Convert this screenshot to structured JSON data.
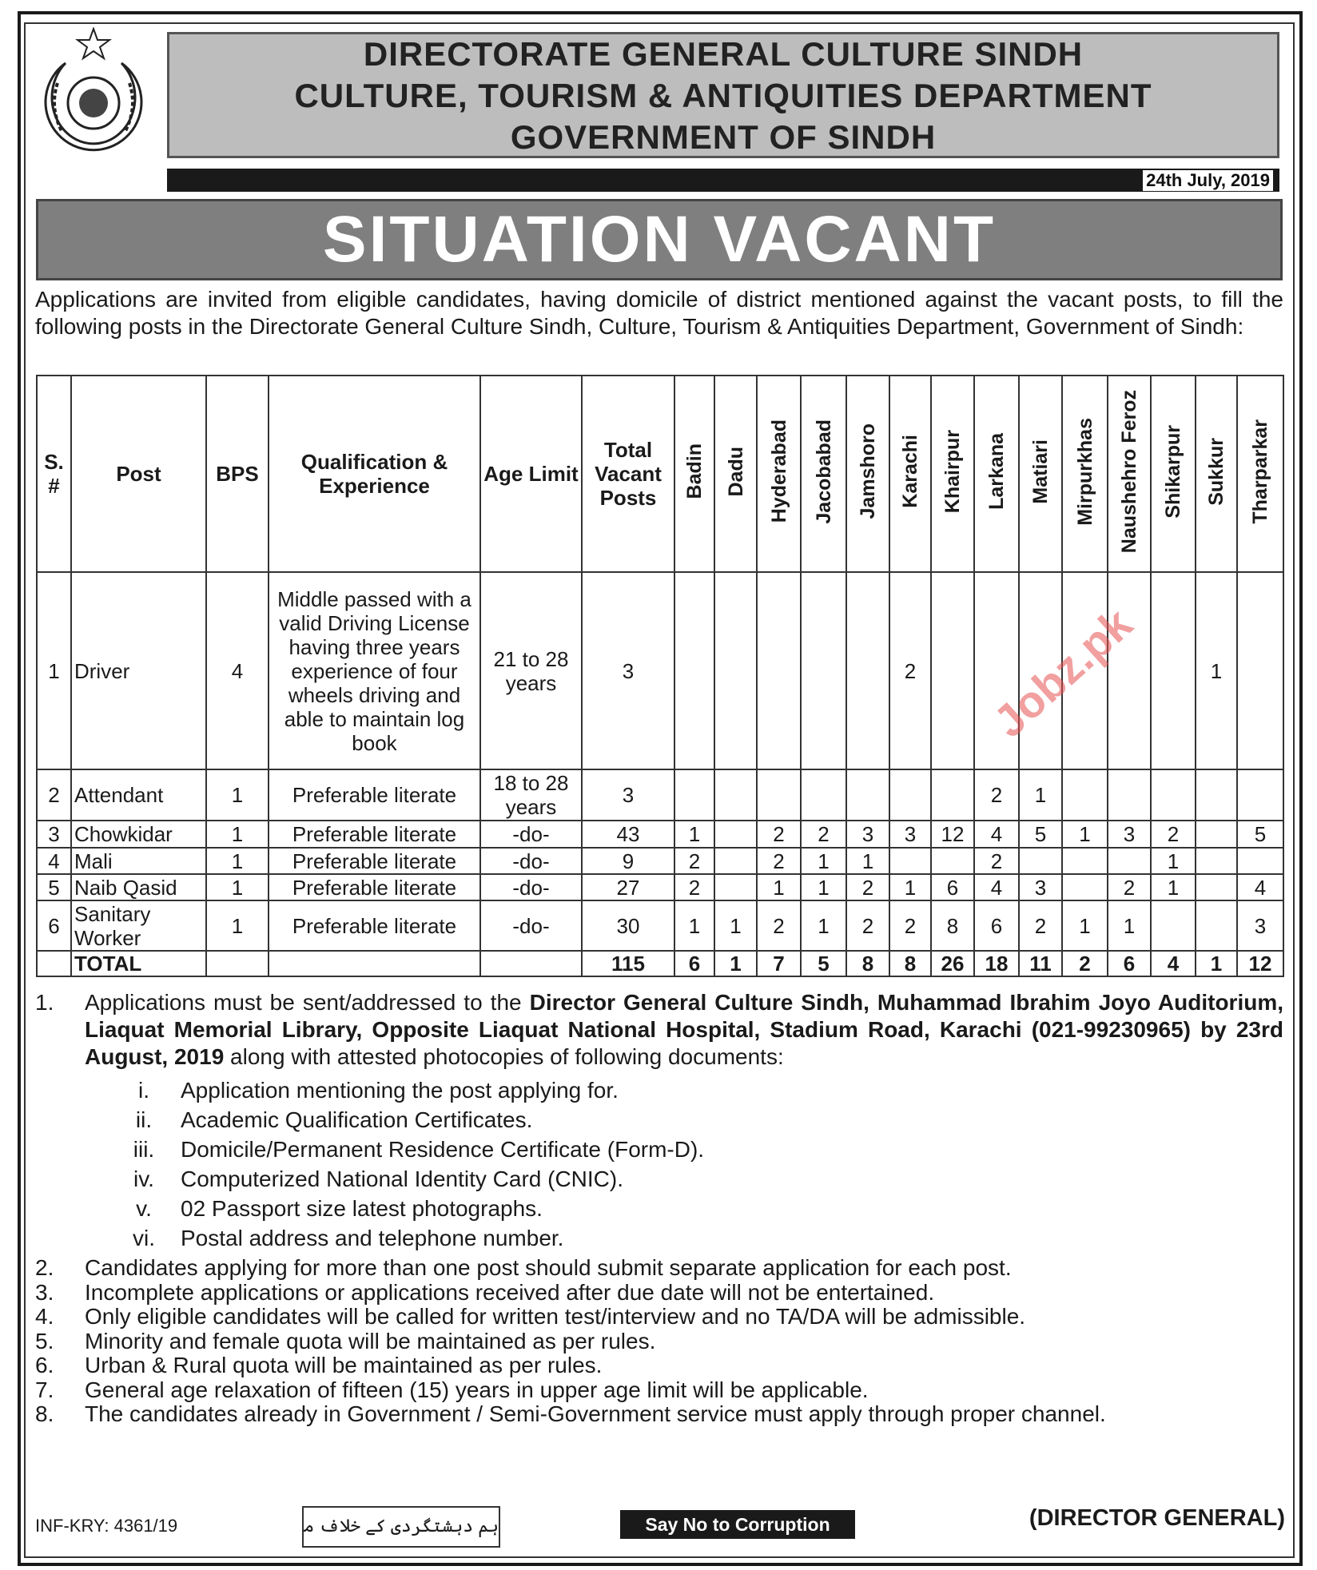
{
  "header": {
    "line1": "DIRECTORATE GENERAL CULTURE SINDH",
    "line2": "CULTURE, TOURISM & ANTIQUITIES DEPARTMENT",
    "line3": "GOVERNMENT OF SINDH",
    "date": "24th July, 2019",
    "logo_icon": "government-of-sindh-emblem"
  },
  "title": "SITUATION VACANT",
  "intro": "Applications are invited from eligible candidates, having domicile of district mentioned against the vacant posts, to fill the following posts in the Directorate General Culture Sindh, Culture, Tourism & Antiquities Department, Government of Sindh:",
  "table": {
    "headers": [
      "S. #",
      "Post",
      "BPS",
      "Qualification & Experience",
      "Age Limit",
      "Total Vacant Posts"
    ],
    "districts": [
      "Badin",
      "Dadu",
      "Hyderabad",
      "Jacobabad",
      "Jamshoro",
      "Karachi",
      "Khairpur",
      "Larkana",
      "Matiari",
      "Mirpurkhas",
      "Naushehro Feroz",
      "Shikarpur",
      "Sukkur",
      "Tharparkar"
    ],
    "rows": [
      {
        "sno": "1",
        "post": "Driver",
        "bps": "4",
        "qual": "Middle passed with a valid Driving License having three years experience of four wheels driving and able to maintain log book",
        "age": "21 to 28 years",
        "total": "3",
        "d": [
          "",
          "",
          "",
          "",
          "",
          "2",
          "",
          "",
          "",
          "",
          "",
          "",
          "1",
          ""
        ]
      },
      {
        "sno": "2",
        "post": "Attendant",
        "bps": "1",
        "qual": "Preferable literate",
        "age": "18 to 28 years",
        "total": "3",
        "d": [
          "",
          "",
          "",
          "",
          "",
          "",
          "",
          "2",
          "1",
          "",
          "",
          "",
          "",
          ""
        ]
      },
      {
        "sno": "3",
        "post": "Chowkidar",
        "bps": "1",
        "qual": "Preferable literate",
        "age": "-do-",
        "total": "43",
        "d": [
          "1",
          "",
          "2",
          "2",
          "3",
          "3",
          "12",
          "4",
          "5",
          "1",
          "3",
          "2",
          "",
          "5"
        ]
      },
      {
        "sno": "4",
        "post": "Mali",
        "bps": "1",
        "qual": "Preferable literate",
        "age": "-do-",
        "total": "9",
        "d": [
          "2",
          "",
          "2",
          "1",
          "1",
          "",
          "",
          "2",
          "",
          "",
          "",
          "1",
          "",
          ""
        ]
      },
      {
        "sno": "5",
        "post": "Naib Qasid",
        "bps": "1",
        "qual": "Preferable literate",
        "age": "-do-",
        "total": "27",
        "d": [
          "2",
          "",
          "1",
          "1",
          "2",
          "1",
          "6",
          "4",
          "3",
          "",
          "2",
          "1",
          "",
          "4"
        ]
      },
      {
        "sno": "6",
        "post": "Sanitary Worker",
        "bps": "1",
        "qual": "Preferable literate",
        "age": "-do-",
        "total": "30",
        "d": [
          "1",
          "1",
          "2",
          "1",
          "2",
          "2",
          "8",
          "6",
          "2",
          "1",
          "1",
          "",
          "",
          "3"
        ]
      }
    ],
    "total": {
      "label": "TOTAL",
      "total": "115",
      "d": [
        "6",
        "1",
        "7",
        "5",
        "8",
        "8",
        "26",
        "18",
        "11",
        "2",
        "6",
        "4",
        "1",
        "12"
      ]
    }
  },
  "notes": {
    "n1_pre": "Applications must be sent/addressed to the ",
    "n1_bold": "Director General Culture Sindh, Muhammad Ibrahim Joyo Auditorium, Liaquat Memorial Library, Opposite Liaquat National Hospital, Stadium Road, Karachi (021-99230965) by 23rd August, 2019",
    "n1_post": " along with attested photocopies of following documents:",
    "docs": [
      {
        "n": "i.",
        "t": "Application mentioning the post applying for."
      },
      {
        "n": "ii.",
        "t": "Academic Qualification Certificates."
      },
      {
        "n": "iii.",
        "t": "Domicile/Permanent Residence Certificate (Form-D)."
      },
      {
        "n": "iv.",
        "t": "Computerized National Identity Card (CNIC)."
      },
      {
        "n": "v.",
        "t": "02 Passport size latest photographs."
      },
      {
        "n": "vi.",
        "t": "Postal address and telephone number."
      }
    ],
    "items": [
      {
        "n": "2.",
        "t": "Candidates applying for more than one post should submit separate application for each post."
      },
      {
        "n": "3.",
        "t": "Incomplete applications or applications received after due date will not be entertained."
      },
      {
        "n": "4.",
        "t": "Only eligible candidates will be called for written test/interview and no TA/DA will be admissible."
      },
      {
        "n": "5.",
        "t": "Minority and female quota will be maintained as per rules."
      },
      {
        "n": "6.",
        "t": "Urban & Rural quota will be maintained as per rules."
      },
      {
        "n": "7.",
        "t": "General age relaxation of fifteen (15) years in upper age limit will be applicable."
      },
      {
        "n": "8.",
        "t": "The candidates already in Government / Semi-Government service must apply through proper channel."
      }
    ]
  },
  "footer": {
    "ref": "INF-KRY: 4361/19",
    "urdu": "ہم دہشتگردی کے خلاف متحد ہیں",
    "corruption": "Say No to Corruption",
    "signatory": "(DIRECTOR GENERAL)"
  },
  "watermark": "Jobz.pk"
}
